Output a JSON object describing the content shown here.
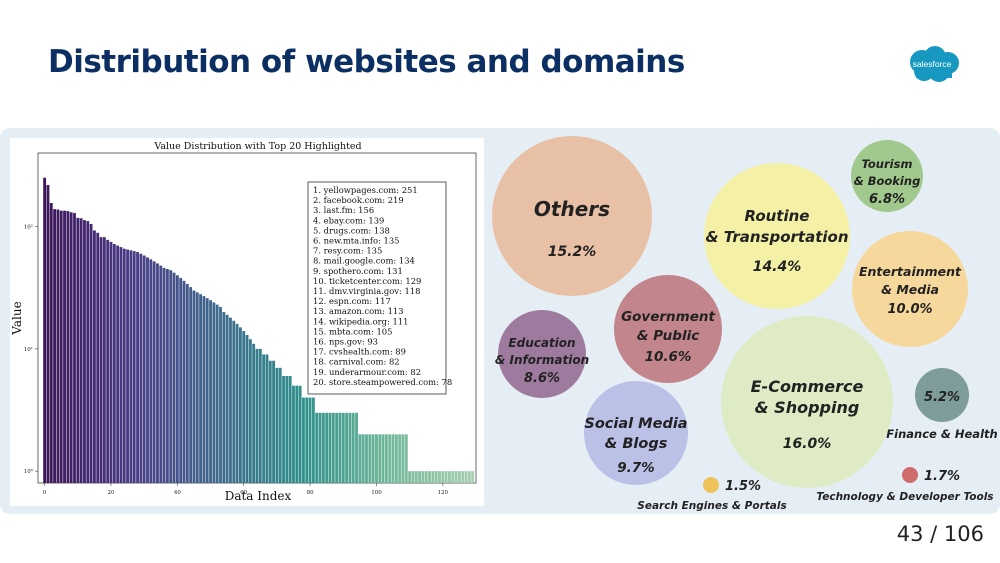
{
  "slide": {
    "title": "Distribution of websites and domains",
    "logo_text": "salesforce",
    "page": "43 / 106"
  },
  "chart_data": [
    {
      "type": "bar",
      "title": "Value Distribution with Top 20 Highlighted",
      "xlabel": "Data Index",
      "ylabel": "Value",
      "yscale": "log",
      "xlim": [
        -2,
        130
      ],
      "ylim": [
        0.8,
        400
      ],
      "x_ticks": [
        0,
        20,
        40,
        60,
        80,
        100,
        120
      ],
      "y_ticks": [
        {
          "value": 1,
          "label": "10⁰"
        },
        {
          "value": 10,
          "label": "10¹"
        },
        {
          "value": 100,
          "label": "10²"
        }
      ],
      "colormap": [
        "#3d1659",
        "#4a3a86",
        "#3f6a8e",
        "#2f8f8b",
        "#6fb89a",
        "#a6cfae"
      ],
      "grid": false,
      "values": [
        251,
        219,
        156,
        139,
        138,
        135,
        135,
        134,
        131,
        129,
        118,
        117,
        113,
        111,
        105,
        93,
        89,
        82,
        82,
        78,
        75,
        72,
        70,
        68,
        66,
        65,
        64,
        63,
        62,
        60,
        58,
        56,
        54,
        52,
        50,
        48,
        46,
        45,
        44,
        42,
        40,
        38,
        36,
        34,
        32,
        30,
        29,
        28,
        27,
        26,
        25,
        24,
        23,
        22,
        20,
        19,
        18,
        17,
        16,
        15,
        14,
        13,
        12,
        11,
        10,
        10,
        9,
        9,
        8,
        8,
        7,
        7,
        6,
        6,
        6,
        5,
        5,
        5,
        4,
        4,
        4,
        4,
        3,
        3,
        3,
        3,
        3,
        3,
        3,
        3,
        3,
        3,
        3,
        3,
        3,
        2,
        2,
        2,
        2,
        2,
        2,
        2,
        2,
        2,
        2,
        2,
        2,
        2,
        2,
        2,
        1,
        1,
        1,
        1,
        1,
        1,
        1,
        1,
        1,
        1,
        1,
        1,
        1,
        1,
        1,
        1,
        1,
        1,
        1,
        1
      ],
      "legend": [
        "1. yellowpages.com: 251",
        "2. facebook.com: 219",
        "3. last.fm: 156",
        "4. ebay.com: 139",
        "5. drugs.com: 138",
        "6. new.mta.info: 135",
        "7. resy.com: 135",
        "8. mail.google.com: 134",
        "9. spothero.com: 131",
        "10. ticketcenter.com: 129",
        "11. dmv.virginia.gov: 118",
        "12. espn.com: 117",
        "13. amazon.com: 113",
        "14. wikipedia.org: 111",
        "15. mbta.com: 105",
        "16. nps.gov: 93",
        "17. cvshealth.com: 89",
        "18. carnival.com: 82",
        "19. underarmour.com: 82",
        "20. store.steampowered.com: 78"
      ]
    },
    {
      "type": "bubble",
      "categories": [
        {
          "label": [
            "Others"
          ],
          "value": "15.2%",
          "color": "#e8c0a6",
          "label_inside": true
        },
        {
          "label": [
            "Routine",
            "& Transportation"
          ],
          "value": "14.4%",
          "color": "#f4f0a6",
          "label_inside": true
        },
        {
          "label": [
            "Tourism",
            "& Booking"
          ],
          "value": "6.8%",
          "color": "#a2c98d",
          "label_inside": true
        },
        {
          "label": [
            "Entertainment",
            "& Media"
          ],
          "value": "10.0%",
          "color": "#f6d89c",
          "label_inside": true
        },
        {
          "label": [
            "Government",
            "& Public"
          ],
          "value": "10.6%",
          "color": "#c2858c",
          "label_inside": true
        },
        {
          "label": [
            "Education",
            "& Information"
          ],
          "value": "8.6%",
          "color": "#9e7b9e",
          "label_inside": true
        },
        {
          "label": [
            "E-Commerce",
            "& Shopping"
          ],
          "value": "16.0%",
          "color": "#deebc4",
          "label_inside": true
        },
        {
          "label": [
            "Finance & Health"
          ],
          "value": "5.2%",
          "color": "#7d9c9a",
          "label_inside": false
        },
        {
          "label": [
            "Social Media",
            "& Blogs"
          ],
          "value": "9.7%",
          "color": "#bac0e6",
          "label_inside": true
        },
        {
          "label": [
            "Search Engines & Portals"
          ],
          "value": "1.5%",
          "color": "#eec35a",
          "label_inside": false
        },
        {
          "label": [
            "Technology & Developer Tools"
          ],
          "value": "1.7%",
          "color": "#cf6b6b",
          "label_inside": false
        }
      ]
    }
  ]
}
